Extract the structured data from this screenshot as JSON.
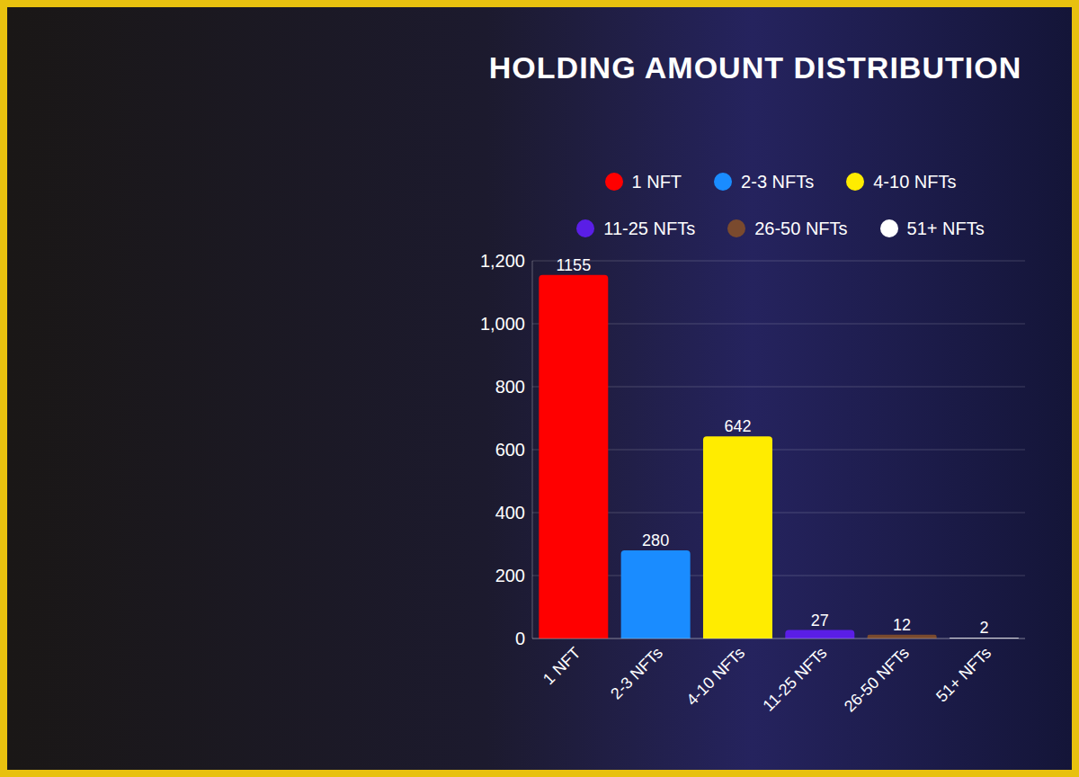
{
  "chart_data": {
    "type": "bar",
    "title": "HOLDING AMOUNT DISTRIBUTION",
    "categories": [
      "1 NFT",
      "2-3 NFTs",
      "4-10 NFTs",
      "11-25 NFTs",
      "26-50 NFTs",
      "51+ NFTs"
    ],
    "values": [
      1155,
      280,
      642,
      27,
      12,
      2
    ],
    "colors": [
      "#ff0000",
      "#1a8cff",
      "#ffec00",
      "#5a1ee6",
      "#7a4a2e",
      "#ffffff"
    ],
    "ylim": [
      0,
      1200
    ],
    "yticks": [
      0,
      200,
      400,
      600,
      800,
      {
        "value": 1000,
        "label": "1,000"
      },
      {
        "value": 1200,
        "label": "1,200"
      }
    ],
    "grid": true,
    "data_labels": true,
    "legend": "top"
  }
}
